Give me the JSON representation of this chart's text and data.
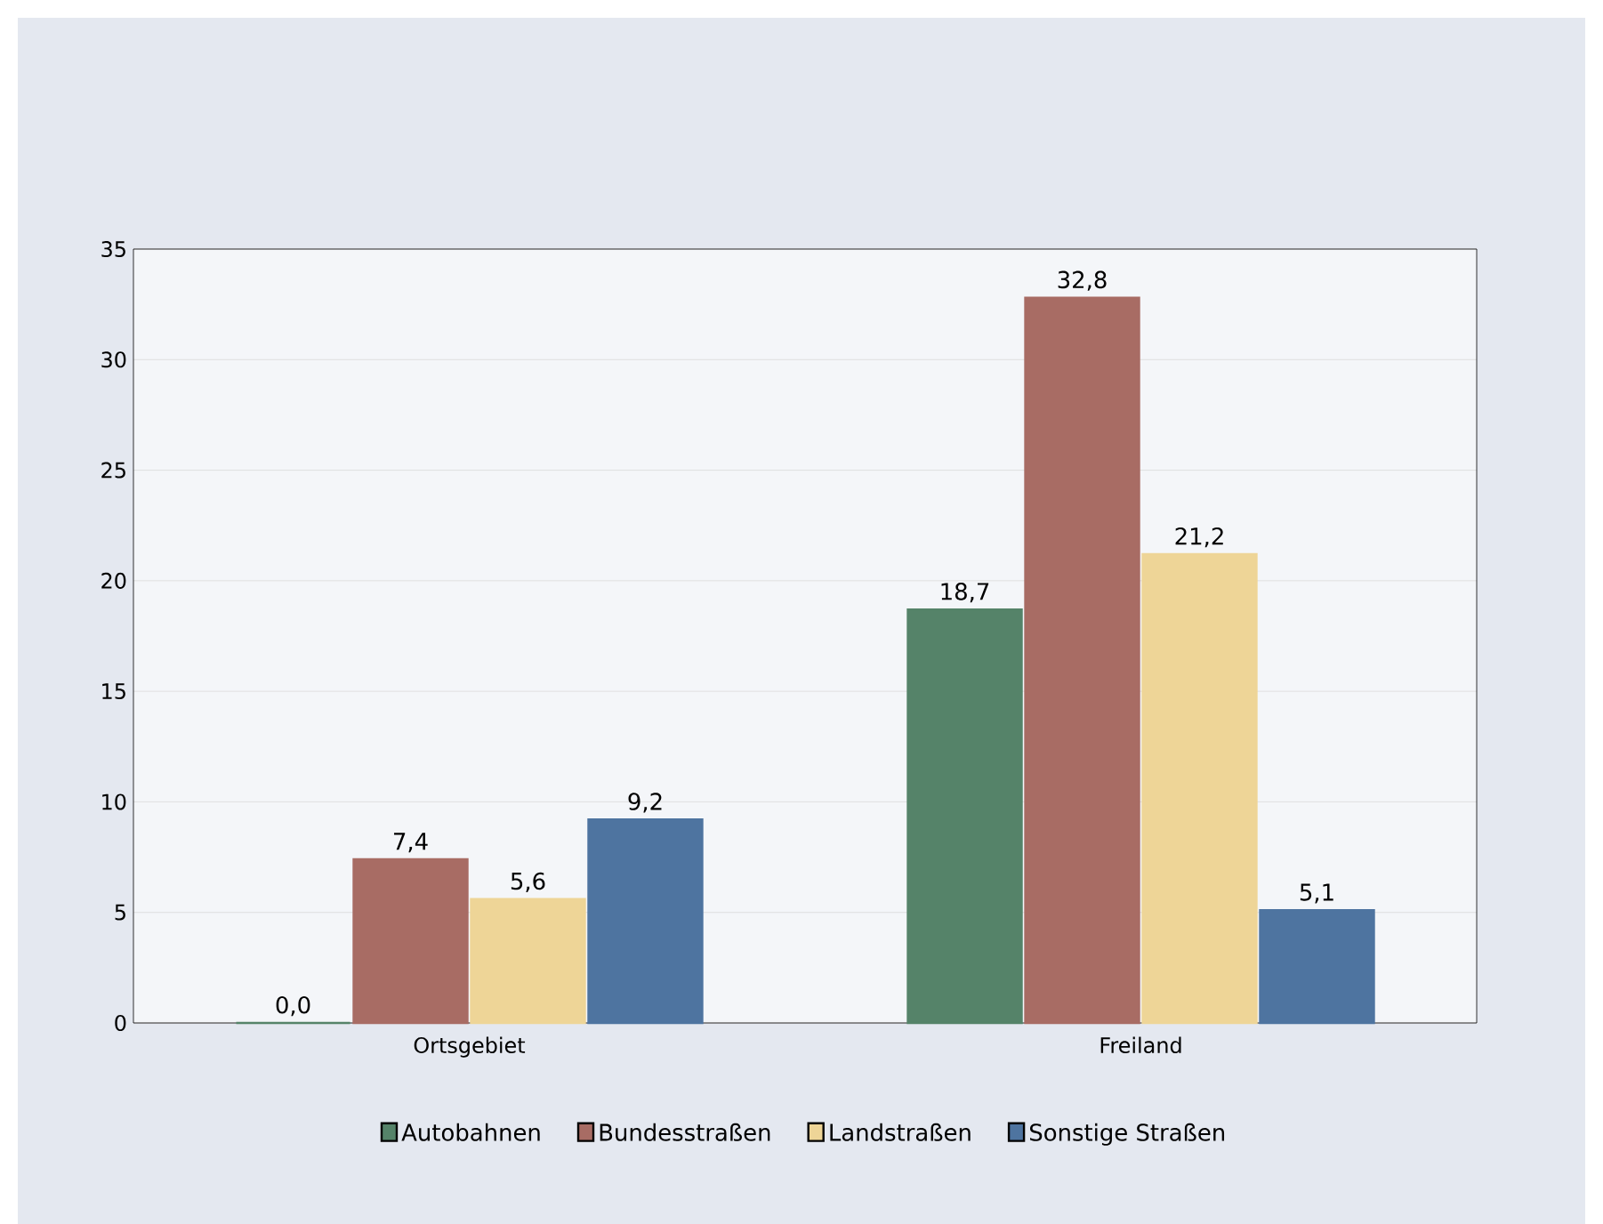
{
  "chart_data": {
    "type": "bar",
    "categories": [
      "Ortsgebiet",
      "Freiland"
    ],
    "series": [
      {
        "name": "Autobahnen",
        "color": "#558369",
        "values": [
          0.0,
          18.7
        ],
        "value_labels": [
          "0,0",
          "18,7"
        ]
      },
      {
        "name": "Bundesstraßen",
        "color": "#a86c64",
        "values": [
          7.4,
          32.8
        ],
        "value_labels": [
          "7,4",
          "32,8"
        ]
      },
      {
        "name": "Landstraßen",
        "color": "#eed597",
        "values": [
          5.6,
          21.2
        ],
        "value_labels": [
          "5,6",
          "21,2"
        ]
      },
      {
        "name": "Sonstige Straßen",
        "color": "#4e74a0",
        "values": [
          9.2,
          5.1
        ],
        "value_labels": [
          "9,2",
          "5,1"
        ]
      }
    ],
    "ylim": [
      0,
      35
    ],
    "yticks": [
      0,
      5,
      10,
      15,
      20,
      25,
      30,
      35
    ],
    "grid": "y",
    "legend": "bottom"
  }
}
